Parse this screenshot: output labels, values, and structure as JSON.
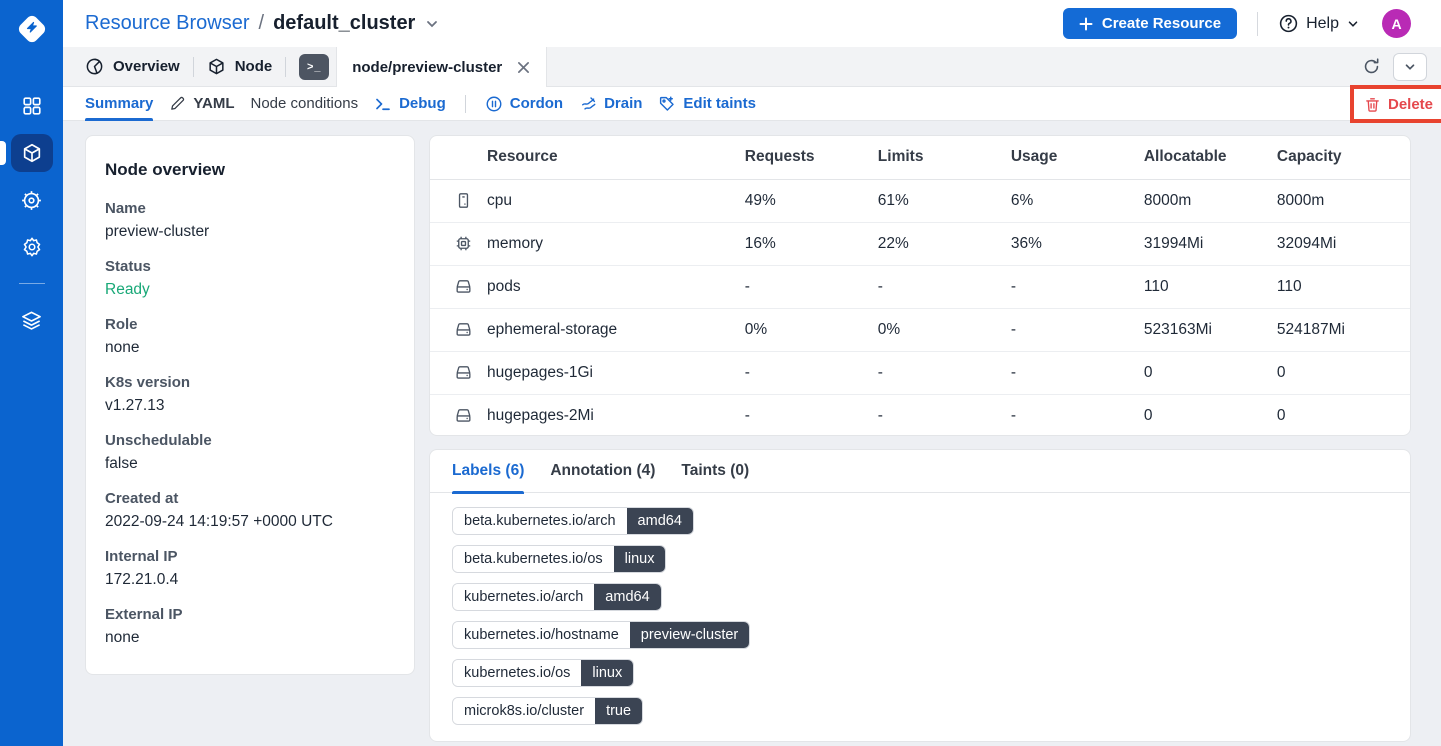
{
  "header": {
    "breadcrumb_root": "Resource Browser",
    "breadcrumb_sep": "/",
    "breadcrumb_current": "default_cluster",
    "create_button": "Create Resource",
    "help_label": "Help",
    "avatar_initial": "A"
  },
  "tabbar": {
    "overview_tab": "Overview",
    "node_tab": "Node",
    "terminal_glyph": ">_",
    "active_tab": "node/preview-cluster"
  },
  "toolbar": {
    "summary": "Summary",
    "yaml": "YAML",
    "node_conditions": "Node conditions",
    "debug": "Debug",
    "cordon": "Cordon",
    "drain": "Drain",
    "edit_taints": "Edit taints",
    "delete": "Delete"
  },
  "overview_card": {
    "title": "Node overview",
    "fields": [
      {
        "label": "Name",
        "value": "preview-cluster"
      },
      {
        "label": "Status",
        "value": "Ready",
        "value_color": "#18a877"
      },
      {
        "label": "Role",
        "value": "none"
      },
      {
        "label": "K8s version",
        "value": "v1.27.13"
      },
      {
        "label": "Unschedulable",
        "value": "false"
      },
      {
        "label": "Created at",
        "value": "2022-09-24 14:19:57 +0000 UTC"
      },
      {
        "label": "Internal IP",
        "value": "172.21.0.4"
      },
      {
        "label": "External IP",
        "value": "none"
      }
    ]
  },
  "resource_table": {
    "columns": [
      "Resource",
      "Requests",
      "Limits",
      "Usage",
      "Allocatable",
      "Capacity"
    ],
    "rows": [
      {
        "icon": "memory-stick-icon",
        "resource": "cpu",
        "requests": "49%",
        "limits": "61%",
        "usage": "6%",
        "allocatable": "8000m",
        "capacity": "8000m"
      },
      {
        "icon": "chip-icon",
        "resource": "memory",
        "requests": "16%",
        "limits": "22%",
        "usage": "36%",
        "allocatable": "31994Mi",
        "capacity": "32094Mi"
      },
      {
        "icon": "hard-drive-icon",
        "resource": "pods",
        "requests": "-",
        "limits": "-",
        "usage": "-",
        "allocatable": "110",
        "capacity": "110"
      },
      {
        "icon": "hard-drive-icon",
        "resource": "ephemeral-storage",
        "requests": "0%",
        "limits": "0%",
        "usage": "-",
        "allocatable": "523163Mi",
        "capacity": "524187Mi"
      },
      {
        "icon": "hard-drive-icon",
        "resource": "hugepages-1Gi",
        "requests": "-",
        "limits": "-",
        "usage": "-",
        "allocatable": "0",
        "capacity": "0"
      },
      {
        "icon": "hard-drive-icon",
        "resource": "hugepages-2Mi",
        "requests": "-",
        "limits": "-",
        "usage": "-",
        "allocatable": "0",
        "capacity": "0"
      }
    ]
  },
  "labels_card": {
    "tabs": [
      {
        "label": "Labels (6)",
        "active": true
      },
      {
        "label": "Annotation (4)",
        "active": false
      },
      {
        "label": "Taints (0)",
        "active": false
      }
    ],
    "chips": [
      {
        "key": "beta.kubernetes.io/arch",
        "value": "amd64"
      },
      {
        "key": "beta.kubernetes.io/os",
        "value": "linux"
      },
      {
        "key": "kubernetes.io/arch",
        "value": "amd64"
      },
      {
        "key": "kubernetes.io/hostname",
        "value": "preview-cluster"
      },
      {
        "key": "kubernetes.io/os",
        "value": "linux"
      },
      {
        "key": "microk8s.io/cluster",
        "value": "true"
      }
    ]
  },
  "colors": {
    "sidebar_blue": "#0b64cf",
    "accent_blue": "#1b6ad1",
    "status_green": "#18a877",
    "delete_red": "#e5484d",
    "highlight_red": "#e8432f",
    "avatar_magenta": "#b92ab5",
    "chip_dark": "#3b4453"
  }
}
